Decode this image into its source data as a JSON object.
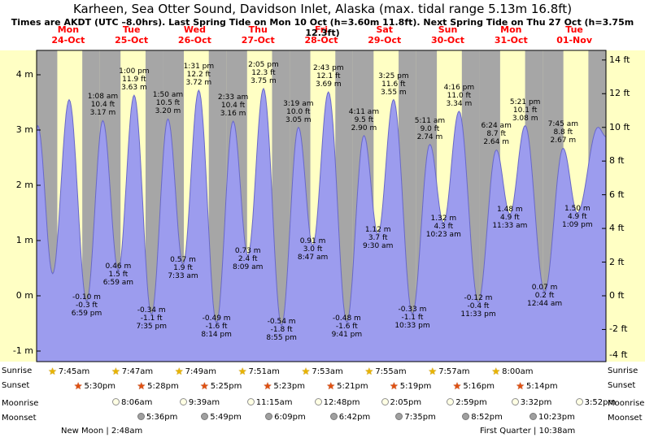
{
  "header": {
    "title": "Karheen, Sea Otter Sound, Davidson Inlet, Alaska (max. tidal range 5.13m 16.8ft)",
    "subtitle": "Times are AKDT (UTC –8.0hrs). Last Spring Tide on Mon 10 Oct (h=3.60m 11.8ft). Next Spring Tide on Thu 27 Oct (h=3.75m 12.3ft)"
  },
  "colors": {
    "day_band": "#ffffc4",
    "night_band": "#a6a6a6",
    "tide_fill": "#9c9cee",
    "tide_stroke": "#6868c8",
    "day_label": "#ff0000"
  },
  "chart_data": {
    "type": "area",
    "title": "Tide height, Mon 24 Oct - Tue 01 Nov",
    "x_unit": "hours from Mon 24-Oct 00:00 AKDT",
    "x_range": [
      0,
      216
    ],
    "y_unit": "m",
    "ylim": [
      -1.19,
      4.44
    ],
    "grid": false,
    "days": [
      {
        "name": "Mon",
        "date": "24-Oct"
      },
      {
        "name": "Tue",
        "date": "25-Oct"
      },
      {
        "name": "Wed",
        "date": "26-Oct"
      },
      {
        "name": "Thu",
        "date": "27-Oct"
      },
      {
        "name": "Fri",
        "date": "28-Oct"
      },
      {
        "name": "Sat",
        "date": "29-Oct"
      },
      {
        "name": "Sun",
        "date": "30-Oct"
      },
      {
        "name": "Mon",
        "date": "31-Oct"
      },
      {
        "name": "Tue",
        "date": "01-Nov"
      }
    ],
    "y_ticks_left": [
      {
        "label": "4 m",
        "value": 4
      },
      {
        "label": "3 m",
        "value": 3
      },
      {
        "label": "2 m",
        "value": 2
      },
      {
        "label": "1 m",
        "value": 1
      },
      {
        "label": "0 m",
        "value": 0
      },
      {
        "label": "-1 m",
        "value": -1
      }
    ],
    "y_ticks_right": [
      {
        "label": "14 ft",
        "value": 14
      },
      {
        "label": "12 ft",
        "value": 12
      },
      {
        "label": "10 ft",
        "value": 10
      },
      {
        "label": "8 ft",
        "value": 8
      },
      {
        "label": "6 ft",
        "value": 6
      },
      {
        "label": "4 ft",
        "value": 4
      },
      {
        "label": "2 ft",
        "value": 2
      },
      {
        "label": "0 ft",
        "value": 0
      },
      {
        "label": "-2 ft",
        "value": -2
      },
      {
        "label": "-4 ft",
        "value": -4
      }
    ],
    "daylight": {
      "sunrise_frac": 0.327,
      "sunset_frac": 0.722
    },
    "extremes": [
      {
        "t": 0,
        "h": 3.02
      },
      {
        "t": 0.45,
        "h": 3.08
      },
      {
        "t": 6.1,
        "h": 0.4
      },
      {
        "t": 12.35,
        "h": 3.55
      },
      {
        "t": 18.98,
        "h": -0.1,
        "type": "low",
        "label": [
          "-0.10 m",
          "-0.3 ft",
          "6:59 pm"
        ]
      },
      {
        "t": 25.13,
        "h": 3.17,
        "type": "high",
        "label": [
          "1:08 am",
          "10.4 ft",
          "3.17 m"
        ]
      },
      {
        "t": 30.98,
        "h": 0.46,
        "type": "low",
        "label": [
          "0.46 m",
          "1.5 ft",
          "6:59 am"
        ]
      },
      {
        "t": 37.0,
        "h": 3.63,
        "type": "high",
        "label": [
          "1:00 pm",
          "11.9 ft",
          "3.63 m"
        ]
      },
      {
        "t": 43.58,
        "h": -0.34,
        "type": "low",
        "label": [
          "-0.34 m",
          "-1.1 ft",
          "7:35 pm"
        ]
      },
      {
        "t": 49.83,
        "h": 3.2,
        "type": "high",
        "label": [
          "1:50 am",
          "10.5 ft",
          "3.20 m"
        ]
      },
      {
        "t": 55.55,
        "h": 0.57,
        "type": "low",
        "label": [
          "0.57 m",
          "1.9 ft",
          "7:33 am"
        ]
      },
      {
        "t": 61.52,
        "h": 3.72,
        "type": "high",
        "label": [
          "1:31 pm",
          "12.2 ft",
          "3.72 m"
        ]
      },
      {
        "t": 68.23,
        "h": -0.49,
        "type": "low",
        "label": [
          "-0.49 m",
          "-1.6 ft",
          "8:14 pm"
        ]
      },
      {
        "t": 74.55,
        "h": 3.16,
        "type": "high",
        "label": [
          "2:33 am",
          "10.4 ft",
          "3.16 m"
        ]
      },
      {
        "t": 80.15,
        "h": 0.73,
        "type": "low",
        "label": [
          "0.73 m",
          "2.4 ft",
          "8:09 am"
        ]
      },
      {
        "t": 86.08,
        "h": 3.75,
        "type": "high",
        "label": [
          "2:05 pm",
          "12.3 ft",
          "3.75 m"
        ]
      },
      {
        "t": 92.92,
        "h": -0.54,
        "type": "low",
        "label": [
          "-0.54 m",
          "-1.8 ft",
          "8:55 pm"
        ]
      },
      {
        "t": 99.32,
        "h": 3.05,
        "type": "high",
        "label": [
          "3:19 am",
          "10.0 ft",
          "3.05 m"
        ]
      },
      {
        "t": 104.78,
        "h": 0.91,
        "type": "low",
        "label": [
          "0.91 m",
          "3.0 ft",
          "8:47 am"
        ]
      },
      {
        "t": 110.72,
        "h": 3.69,
        "type": "high",
        "label": [
          "2:43 pm",
          "12.1 ft",
          "3.69 m"
        ]
      },
      {
        "t": 117.68,
        "h": -0.48,
        "type": "low",
        "label": [
          "-0.48 m",
          "-1.6 ft",
          "9:41 pm"
        ]
      },
      {
        "t": 124.18,
        "h": 2.9,
        "type": "high",
        "label": [
          "4:11 am",
          "9.5 ft",
          "2.90 m"
        ]
      },
      {
        "t": 129.5,
        "h": 1.12,
        "type": "low",
        "label": [
          "1.12 m",
          "3.7 ft",
          "9:30 am"
        ]
      },
      {
        "t": 135.42,
        "h": 3.55,
        "type": "high",
        "label": [
          "3:25 pm",
          "11.6 ft",
          "3.55 m"
        ]
      },
      {
        "t": 142.55,
        "h": -0.33,
        "type": "low",
        "label": [
          "-0.33 m",
          "-1.1 ft",
          "10:33 pm"
        ]
      },
      {
        "t": 149.18,
        "h": 2.74,
        "type": "high",
        "label": [
          "5:11 am",
          "9.0 ft",
          "2.74 m"
        ]
      },
      {
        "t": 154.38,
        "h": 1.32,
        "type": "low",
        "label": [
          "1.32 m",
          "4.3 ft",
          "10:23 am"
        ]
      },
      {
        "t": 160.27,
        "h": 3.34,
        "type": "high",
        "label": [
          "4:16 pm",
          "11.0 ft",
          "3.34 m"
        ]
      },
      {
        "t": 167.55,
        "h": -0.12,
        "type": "low",
        "label": [
          "-0.12 m",
          "-0.4 ft",
          "11:33 pm"
        ]
      },
      {
        "t": 174.4,
        "h": 2.64,
        "type": "high",
        "label": [
          "6:24 am",
          "8.7 ft",
          "2.64 m"
        ]
      },
      {
        "t": 179.55,
        "h": 1.48,
        "type": "low",
        "label": [
          "1.48 m",
          "4.9 ft",
          "11:33 am"
        ]
      },
      {
        "t": 185.35,
        "h": 3.08,
        "type": "high",
        "label": [
          "5:21 pm",
          "10.1 ft",
          "3.08 m"
        ]
      },
      {
        "t": 192.73,
        "h": 0.07,
        "type": "low",
        "label": [
          "0.07 m",
          "0.2 ft",
          "12:44 am"
        ]
      },
      {
        "t": 199.75,
        "h": 2.67,
        "type": "high",
        "label": [
          "7:45 am",
          "8.8 ft",
          "2.67 m"
        ]
      },
      {
        "t": 205.15,
        "h": 1.5,
        "type": "low",
        "label": [
          "1.50 m",
          "4.9 ft",
          "1:09 pm"
        ]
      },
      {
        "t": 213.0,
        "h": 3.05
      },
      {
        "t": 216.0,
        "h": 2.88
      }
    ]
  },
  "astro": {
    "rows": [
      {
        "name": "sunrise",
        "label": "Sunrise",
        "icon": "star",
        "color": "#e8b400",
        "border": "#a07000",
        "items": [
          {
            "t": 7.75,
            "time": "7:45am"
          },
          {
            "t": 31.78,
            "time": "7:47am"
          },
          {
            "t": 55.82,
            "time": "7:49am"
          },
          {
            "t": 79.85,
            "time": "7:51am"
          },
          {
            "t": 103.88,
            "time": "7:53am"
          },
          {
            "t": 127.92,
            "time": "7:55am"
          },
          {
            "t": 151.95,
            "time": "7:57am"
          },
          {
            "t": 176.0,
            "time": "8:00am"
          }
        ]
      },
      {
        "name": "sunset",
        "label": "Sunset",
        "icon": "star",
        "color": "#e05010",
        "border": "#902800",
        "items": [
          {
            "t": 17.5,
            "time": "5:30pm"
          },
          {
            "t": 41.47,
            "time": "5:28pm"
          },
          {
            "t": 65.42,
            "time": "5:25pm"
          },
          {
            "t": 89.38,
            "time": "5:23pm"
          },
          {
            "t": 113.35,
            "time": "5:21pm"
          },
          {
            "t": 137.32,
            "time": "5:19pm"
          },
          {
            "t": 161.27,
            "time": "5:16pm"
          },
          {
            "t": 185.23,
            "time": "5:14pm"
          }
        ]
      },
      {
        "name": "moonrise",
        "label": "Moonrise",
        "icon": "moon",
        "color": "#ffffe4",
        "border": "#909090",
        "items": [
          {
            "t": 32.1,
            "time": "8:06am"
          },
          {
            "t": 57.65,
            "time": "9:39am"
          },
          {
            "t": 83.25,
            "time": "11:15am"
          },
          {
            "t": 108.8,
            "time": "12:48pm"
          },
          {
            "t": 134.08,
            "time": "2:05pm"
          },
          {
            "t": 158.98,
            "time": "2:59pm"
          },
          {
            "t": 183.53,
            "time": "3:32pm"
          },
          {
            "t": 207.87,
            "time": "3:52pm"
          }
        ]
      },
      {
        "name": "moonset",
        "label": "Moonset",
        "icon": "moon",
        "color": "#a0a0a0",
        "border": "#787878",
        "items": [
          {
            "t": 41.6,
            "time": "5:36pm"
          },
          {
            "t": 65.82,
            "time": "5:49pm"
          },
          {
            "t": 90.15,
            "time": "6:09pm"
          },
          {
            "t": 114.7,
            "time": "6:42pm"
          },
          {
            "t": 139.58,
            "time": "7:35pm"
          },
          {
            "t": 164.87,
            "time": "8:52pm"
          },
          {
            "t": 190.38,
            "time": "10:23pm"
          }
        ]
      }
    ],
    "phases": [
      {
        "name": "new-moon",
        "text": "New Moon | 2:48am"
      },
      {
        "name": "first-quarter",
        "text": "First Quarter | 10:38am"
      }
    ]
  }
}
